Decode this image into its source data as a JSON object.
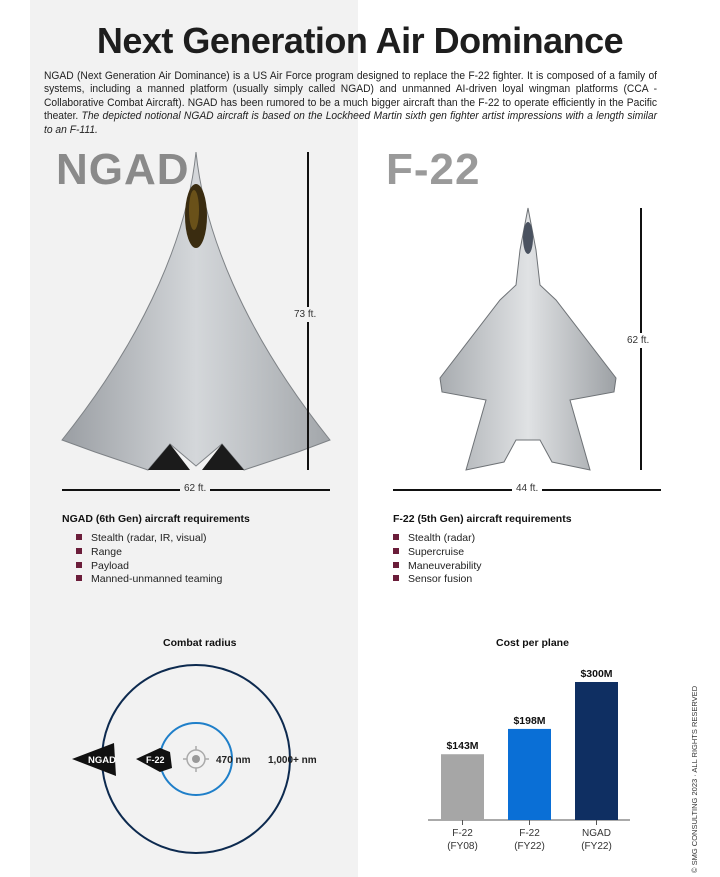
{
  "title": "Next Generation Air Dominance",
  "intro": {
    "text": "NGAD (Next Generation Air Dominance) is a US Air Force program designed to replace the F-22 fighter. It is composed of a family of systems, including a manned platform (usually simply called NGAD) and unmanned AI-driven loyal wingman platforms (CCA - Collaborative Combat Aircraft). NGAD has been rumored to be a much bigger aircraft than the F-22 to operate efficiently in the Pacific theater. ",
    "italic": "The depicted notional NGAD aircraft is based on the Lockheed Martin sixth gen fighter artist impressions with a length similar to an F-111."
  },
  "ngad": {
    "name": "NGAD",
    "length": "73 ft.",
    "span": "62 ft.",
    "req_title": "NGAD (6th Gen) aircraft requirements",
    "requirements": [
      "Stealth (radar, IR, visual)",
      "Range",
      "Payload",
      "Manned-unmanned teaming"
    ]
  },
  "f22": {
    "name": "F-22",
    "length": "62 ft.",
    "span": "44 ft.",
    "req_title": "F-22 (5th Gen) aircraft requirements",
    "requirements": [
      "Stealth (radar)",
      "Supercruise",
      "Maneuverability",
      "Sensor fusion"
    ]
  },
  "combat_radius": {
    "title": "Combat radius",
    "ngad_label": "NGAD",
    "f22_label": "F-22",
    "f22_radius": "470 nm",
    "ngad_radius": "1,000+ nm",
    "colors": {
      "outer": "#0d2a4f",
      "inner": "#1f7fc9"
    }
  },
  "chart_data": {
    "type": "bar",
    "title": "Cost per plane",
    "categories": [
      "F-22\n(FY08)",
      "F-22\n(FY22)",
      "NGAD\n(FY22)"
    ],
    "category_lines": [
      [
        "F-22",
        "(FY08)"
      ],
      [
        "F-22",
        "(FY22)"
      ],
      [
        "NGAD",
        "(FY22)"
      ]
    ],
    "values": [
      143,
      198,
      300
    ],
    "data_labels": [
      "$143M",
      "$198M",
      "$300M"
    ],
    "unit": "$M",
    "colors": [
      "#a6a6a6",
      "#0a6fd6",
      "#0f2f62"
    ],
    "ylim": [
      0,
      300
    ],
    "grid": false
  },
  "copyright": "© SMG CONSULTING 2023 · ALL RIGHTS RESERVED"
}
